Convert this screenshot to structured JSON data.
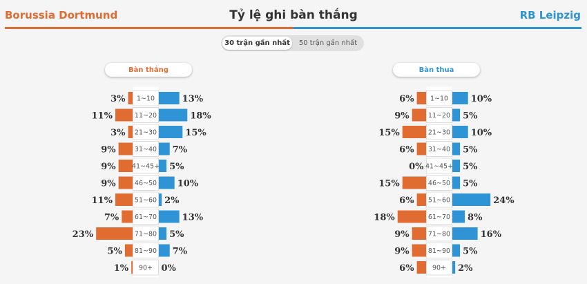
{
  "header": {
    "team_home": "Borussia Dortmund",
    "team_away": "RB Leipzig",
    "title": "Tỷ lệ ghi bàn thắng",
    "home_color": "#e06c32",
    "away_color": "#2e94d6"
  },
  "toggle": {
    "active": "30 trận gần nhất",
    "inactive": "50 trận gần nhất"
  },
  "chart_data": [
    {
      "type": "bar",
      "title": "Bàn thắng",
      "categories": [
        "1~10",
        "11~20",
        "21~30",
        "31~40",
        "41~45+",
        "46~50",
        "51~60",
        "61~70",
        "71~80",
        "81~90",
        "90+"
      ],
      "series": [
        {
          "name": "Borussia Dortmund",
          "values": [
            3,
            11,
            3,
            9,
            9,
            9,
            11,
            7,
            23,
            5,
            1
          ]
        },
        {
          "name": "RB Leipzig",
          "values": [
            13,
            18,
            15,
            7,
            5,
            10,
            2,
            13,
            5,
            7,
            0
          ]
        }
      ]
    },
    {
      "type": "bar",
      "title": "Bàn thua",
      "categories": [
        "1~10",
        "11~20",
        "21~30",
        "31~40",
        "41~45+",
        "46~50",
        "51~60",
        "61~70",
        "71~80",
        "81~90",
        "90+"
      ],
      "series": [
        {
          "name": "Borussia Dortmund",
          "values": [
            6,
            9,
            15,
            6,
            0,
            15,
            6,
            18,
            9,
            9,
            6
          ]
        },
        {
          "name": "RB Leipzig",
          "values": [
            10,
            5,
            10,
            5,
            5,
            5,
            24,
            8,
            16,
            5,
            2
          ]
        }
      ]
    }
  ]
}
